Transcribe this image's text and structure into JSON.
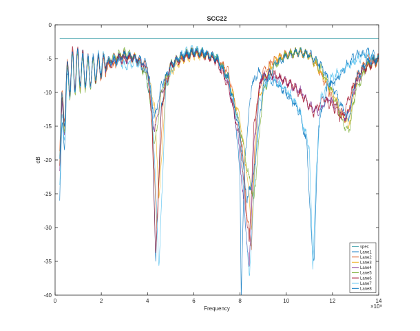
{
  "chart_data": {
    "type": "line",
    "title": "SCC22",
    "xlabel": "Frequency",
    "ylabel": "dB",
    "x_exponent_label": "×10⁹",
    "xlim": [
      0,
      14
    ],
    "ylim": [
      -40,
      0
    ],
    "x_ticks": [
      0,
      2,
      4,
      6,
      8,
      10,
      12,
      14
    ],
    "y_ticks": [
      0,
      -5,
      -10,
      -15,
      -20,
      -25,
      -30,
      -35,
      -40
    ],
    "grid": false,
    "legend_position": "bottom-right",
    "series": [
      {
        "name": "spec",
        "color": "#5fb0b8",
        "x": [
          0.2,
          14
        ],
        "y": [
          -2,
          -2
        ]
      },
      {
        "name": "Lane1",
        "color": "#0072bd",
        "x": [
          0.2,
          0.6,
          1.0,
          1.5,
          2.0,
          2.5,
          3.0,
          3.5,
          3.9,
          4.2,
          4.35,
          4.6,
          5.0,
          5.5,
          6.0,
          6.5,
          7.0,
          7.5,
          7.8,
          8.0,
          8.05,
          8.2,
          8.5,
          8.8,
          9.2,
          9.7,
          10.2,
          10.6,
          10.9,
          11.1,
          11.2,
          11.4,
          11.8,
          12.2,
          12.6,
          13.0,
          13.5,
          14.0
        ],
        "y": [
          -22,
          -8,
          -6,
          -7,
          -6,
          -5.5,
          -4.5,
          -5,
          -7,
          -12,
          -36,
          -12,
          -6,
          -4.5,
          -4,
          -4.2,
          -5,
          -8,
          -14,
          -22,
          -40,
          -20,
          -9,
          -7,
          -8,
          -9,
          -11,
          -13,
          -18,
          -32,
          -35,
          -15,
          -9,
          -8,
          -6,
          -4.5,
          -4,
          -5
        ]
      },
      {
        "name": "Lane2",
        "color": "#d95319",
        "x": [
          0.2,
          0.6,
          1.0,
          1.5,
          2.0,
          2.5,
          3.0,
          3.5,
          4.0,
          4.2,
          4.4,
          4.7,
          5.0,
          5.5,
          6.0,
          6.5,
          7.0,
          7.5,
          7.8,
          8.1,
          8.3,
          8.5,
          8.7,
          9.0,
          9.5,
          10.0,
          10.5,
          11.0,
          11.3,
          11.6,
          12.0,
          12.3,
          12.6,
          13.0,
          13.5,
          14.0
        ],
        "y": [
          -15,
          -7,
          -6.5,
          -7,
          -6.5,
          -6,
          -5,
          -5,
          -6,
          -15,
          -30,
          -10,
          -6,
          -5,
          -4,
          -4.5,
          -5,
          -7,
          -12,
          -18,
          -28,
          -33,
          -12,
          -7,
          -5,
          -4.5,
          -4,
          -4.5,
          -6,
          -8,
          -11,
          -13,
          -14,
          -8,
          -5,
          -5
        ]
      },
      {
        "name": "Lane3",
        "color": "#edb120",
        "x": [
          0.2,
          0.6,
          1.0,
          1.5,
          2.0,
          2.5,
          3.0,
          3.5,
          4.0,
          4.3,
          4.5,
          4.8,
          5.2,
          5.6,
          6.0,
          6.5,
          7.0,
          7.5,
          8.0,
          8.3,
          8.5,
          8.8,
          9.2,
          9.6,
          10.0,
          10.5,
          11.0,
          11.5,
          12.0,
          12.4,
          12.7,
          13.0,
          13.5,
          14.0
        ],
        "y": [
          -16,
          -8,
          -7,
          -7,
          -6,
          -5,
          -4.5,
          -5,
          -7,
          -12,
          -26,
          -9,
          -6,
          -5,
          -4.5,
          -4.6,
          -5,
          -8,
          -14,
          -22,
          -30,
          -11,
          -7,
          -5,
          -4.5,
          -4,
          -4.5,
          -7,
          -10,
          -13,
          -15,
          -9,
          -6,
          -5.5
        ]
      },
      {
        "name": "Lane4",
        "color": "#7e2f8e",
        "x": [
          0.2,
          0.6,
          1.0,
          1.5,
          2.0,
          2.5,
          3.0,
          3.5,
          4.0,
          4.3,
          4.6,
          5.0,
          5.5,
          6.0,
          6.5,
          7.0,
          7.5,
          7.9,
          8.1,
          8.4,
          8.6,
          8.9,
          9.3,
          9.8,
          10.2,
          10.7,
          11.0,
          11.4,
          11.8,
          12.2,
          12.6,
          13.0,
          13.5,
          14.0
        ],
        "y": [
          -18,
          -7.5,
          -6.5,
          -7,
          -6,
          -5.5,
          -5,
          -5,
          -6.5,
          -16,
          -10,
          -6,
          -4.5,
          -4,
          -4.3,
          -5,
          -9,
          -16,
          -24,
          -36,
          -18,
          -8,
          -7.5,
          -8,
          -9,
          -10,
          -12,
          -13,
          -11,
          -12,
          -14,
          -9,
          -6,
          -5
        ]
      },
      {
        "name": "Lane5",
        "color": "#77ac30",
        "x": [
          0.2,
          0.6,
          1.0,
          1.5,
          2.0,
          2.5,
          3.0,
          3.5,
          4.0,
          4.3,
          4.6,
          5.0,
          5.5,
          6.0,
          6.5,
          7.0,
          7.5,
          8.0,
          8.3,
          8.6,
          9.0,
          9.5,
          10.0,
          10.5,
          11.0,
          11.5,
          12.0,
          12.4,
          12.7,
          13.0,
          13.5,
          14.0
        ],
        "y": [
          -17,
          -8,
          -7,
          -7.5,
          -6,
          -5,
          -4,
          -5,
          -8,
          -18,
          -10,
          -6,
          -4.5,
          -4,
          -4.2,
          -4.8,
          -8,
          -15,
          -21,
          -26,
          -10,
          -6,
          -4.5,
          -4,
          -4.5,
          -6.5,
          -10,
          -14,
          -16,
          -10,
          -6,
          -5
        ]
      },
      {
        "name": "Lane6",
        "color": "#a2142f",
        "x": [
          0.2,
          0.6,
          1.0,
          1.5,
          2.0,
          2.5,
          3.0,
          3.5,
          4.0,
          4.2,
          4.35,
          4.6,
          5.0,
          5.5,
          6.0,
          6.5,
          7.0,
          7.5,
          8.0,
          8.2,
          8.4,
          8.6,
          8.9,
          9.3,
          9.8,
          10.3,
          10.8,
          11.2,
          11.6,
          12.0,
          12.4,
          12.8,
          13.2,
          13.6,
          14.0
        ],
        "y": [
          -17,
          -7,
          -6,
          -7,
          -6,
          -5,
          -4.5,
          -5,
          -7,
          -15,
          -35,
          -12,
          -6,
          -5,
          -4.3,
          -4.5,
          -5.5,
          -9,
          -17,
          -25,
          -33,
          -15,
          -8,
          -7,
          -8,
          -9,
          -11,
          -13,
          -11,
          -12,
          -14,
          -10,
          -7,
          -6,
          -5.5
        ]
      },
      {
        "name": "Lane7",
        "color": "#4dbeee",
        "x": [
          0.2,
          0.6,
          1.0,
          1.5,
          2.0,
          2.5,
          3.0,
          3.5,
          4.0,
          4.2,
          4.5,
          4.8,
          5.2,
          5.6,
          6.0,
          6.5,
          7.0,
          7.5,
          7.9,
          8.1,
          8.4,
          8.8,
          9.2,
          9.6,
          10.0,
          10.5,
          11.0,
          11.15,
          11.3,
          11.5,
          11.9,
          12.3,
          12.7,
          13.1,
          13.5,
          14.0
        ],
        "y": [
          -20,
          -8,
          -6.5,
          -7,
          -5.5,
          -5,
          -6,
          -5.5,
          -7,
          -12,
          -36,
          -9,
          -5.5,
          -4,
          -3.6,
          -4,
          -4.8,
          -8,
          -14,
          -22,
          -38,
          -12,
          -8,
          -8.5,
          -9.5,
          -12,
          -18,
          -36,
          -22,
          -11,
          -8,
          -7,
          -6,
          -5,
          -4.5,
          -5
        ]
      },
      {
        "name": "Lane8",
        "color": "#0072bd",
        "x": [
          0.2,
          0.6,
          1.0,
          1.5,
          2.0,
          2.5,
          3.0,
          3.5,
          4.0,
          4.3,
          4.6,
          5.0,
          5.5,
          6.0,
          6.5,
          7.0,
          7.5,
          8.0,
          8.3,
          8.6,
          9.0,
          9.5,
          10.0,
          10.5,
          11.0,
          11.5,
          12.0,
          12.4,
          12.7,
          13.0,
          13.5,
          14.0
        ],
        "y": [
          -16,
          -7,
          -6.5,
          -7,
          -6,
          -5.5,
          -4.5,
          -4.8,
          -6,
          -14,
          -9,
          -6,
          -4.6,
          -4,
          -4.3,
          -5,
          -8,
          -16,
          -26,
          -22,
          -9,
          -6,
          -4.6,
          -4,
          -4.3,
          -6,
          -9,
          -12,
          -14,
          -8,
          -5.5,
          -5
        ]
      }
    ]
  }
}
